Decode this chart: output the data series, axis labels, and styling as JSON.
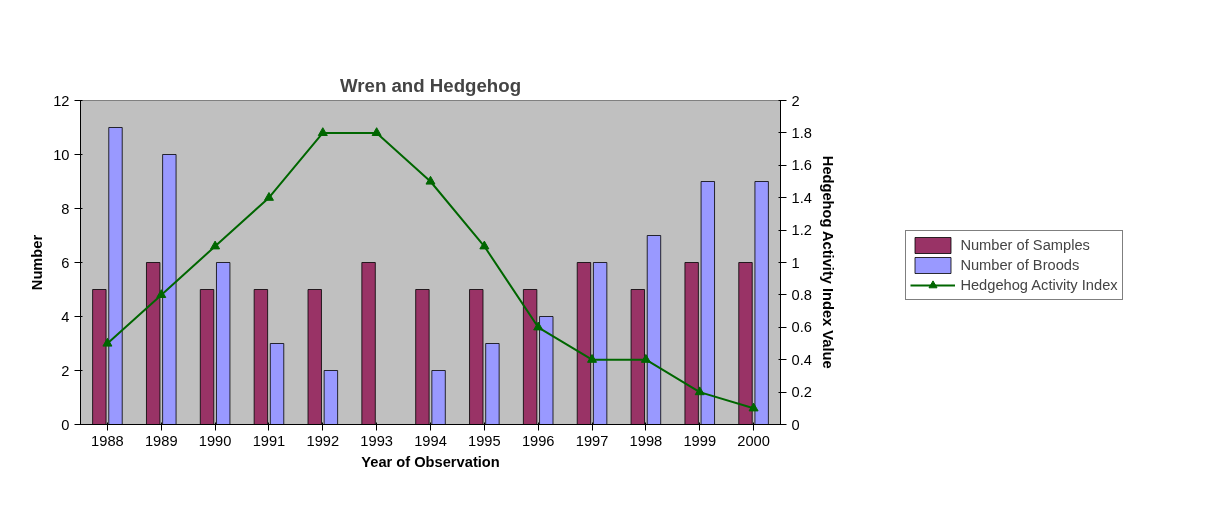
{
  "chart_data": {
    "type": "bar",
    "title": "Wren and Hedgehog",
    "xlabel": "Year of Observation",
    "ylabel": "Number",
    "y2label": "Hedgehog Activity Index Value",
    "categories": [
      "1988",
      "1989",
      "1990",
      "1991",
      "1992",
      "1993",
      "1994",
      "1995",
      "1996",
      "1997",
      "1998",
      "1999",
      "2000"
    ],
    "series": [
      {
        "name": "Number of Samples",
        "color": "#993366",
        "values": [
          5,
          6,
          5,
          5,
          5,
          6,
          5,
          5,
          5,
          6,
          5,
          6,
          6
        ]
      },
      {
        "name": "Number of Broods",
        "color": "#9999ff",
        "values": [
          11,
          10,
          6,
          3,
          2,
          null,
          2,
          3,
          4,
          6,
          7,
          9,
          9
        ]
      },
      {
        "name": "Hedgehog Activity Index",
        "type": "line",
        "axis": "y2",
        "color": "#006600",
        "values": [
          0.5,
          0.8,
          1.1,
          1.4,
          1.8,
          1.8,
          1.5,
          1.1,
          0.6,
          0.4,
          0.4,
          0.2,
          0.1
        ]
      }
    ],
    "ylim": [
      0,
      12
    ],
    "yticks": [
      0,
      2,
      4,
      6,
      8,
      10,
      12
    ],
    "y2lim": [
      0,
      2
    ],
    "y2ticks": [
      0,
      0.2,
      0.4,
      0.6,
      0.8,
      1,
      1.2,
      1.4,
      1.6,
      1.8,
      2
    ],
    "marker": "triangle",
    "grid": false,
    "legend": "right"
  }
}
